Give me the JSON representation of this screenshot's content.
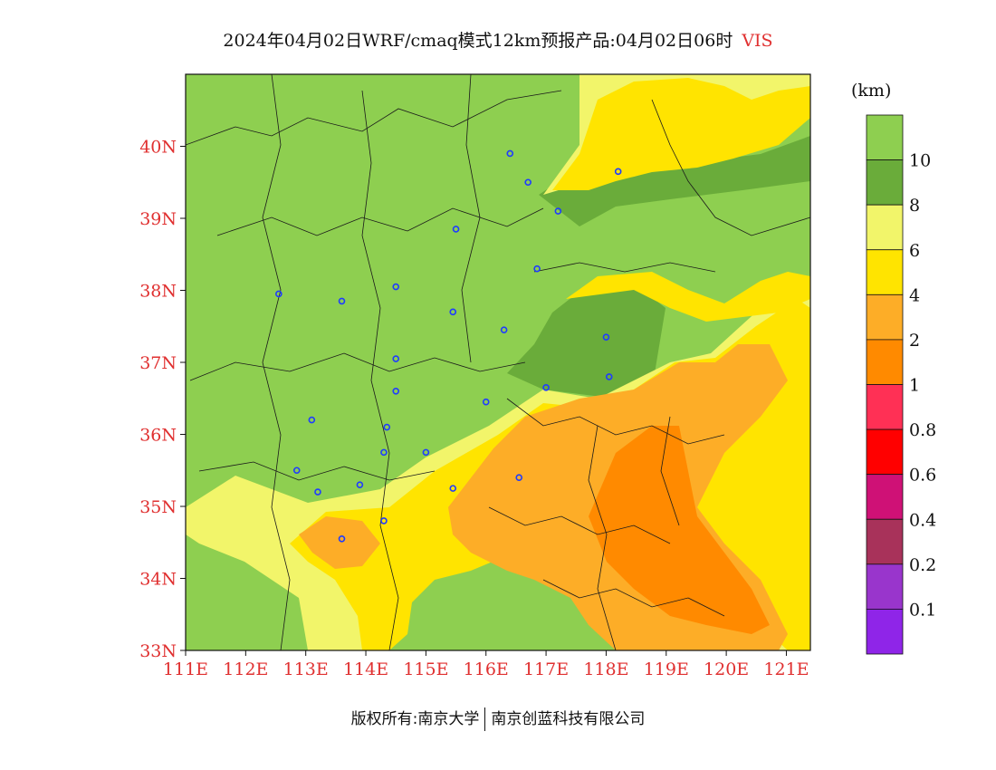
{
  "title": {
    "main": "2024年04月02日WRF/cmaq模式12km预报产品:04月02日06时",
    "variable": "VIS"
  },
  "legend": {
    "unit": "(km)",
    "levels": [
      {
        "label": "",
        "color": "#8ecf50"
      },
      {
        "label": "10",
        "color": "#6aac3a"
      },
      {
        "label": "8",
        "color": "#f2f56a"
      },
      {
        "label": "6",
        "color": "#ffe400"
      },
      {
        "label": "4",
        "color": "#fdad27"
      },
      {
        "label": "2",
        "color": "#ff8a00"
      },
      {
        "label": "1",
        "color": "#ff3055"
      },
      {
        "label": "0.8",
        "color": "#ff0000"
      },
      {
        "label": "0.6",
        "color": "#cf1176"
      },
      {
        "label": "0.4",
        "color": "#a8325a"
      },
      {
        "label": "0.2",
        "color": "#9935cc"
      },
      {
        "label": "0.1",
        "color": "#8f25e8"
      }
    ]
  },
  "map": {
    "lon_range": [
      111,
      121.4
    ],
    "lat_range": [
      33,
      41
    ],
    "x_ticks": [
      "111E",
      "112E",
      "113E",
      "114E",
      "115E",
      "116E",
      "117E",
      "118E",
      "119E",
      "120E",
      "121E"
    ],
    "y_ticks": [
      "33N",
      "34N",
      "35N",
      "36N",
      "37N",
      "38N",
      "39N",
      "40N"
    ],
    "tick_color": "#e03030",
    "stations": [
      [
        116.4,
        39.9
      ],
      [
        116.7,
        39.5
      ],
      [
        117.2,
        39.1
      ],
      [
        118.2,
        39.65
      ],
      [
        115.5,
        38.85
      ],
      [
        116.85,
        38.3
      ],
      [
        112.55,
        37.95
      ],
      [
        113.6,
        37.85
      ],
      [
        114.5,
        38.05
      ],
      [
        115.45,
        37.7
      ],
      [
        116.3,
        37.45
      ],
      [
        114.5,
        37.05
      ],
      [
        114.5,
        36.6
      ],
      [
        117.0,
        36.65
      ],
      [
        118.05,
        36.8
      ],
      [
        118.0,
        37.35
      ],
      [
        113.1,
        36.2
      ],
      [
        114.35,
        36.1
      ],
      [
        114.3,
        35.75
      ],
      [
        115.0,
        35.75
      ],
      [
        112.85,
        35.5
      ],
      [
        113.2,
        35.2
      ],
      [
        113.9,
        35.3
      ],
      [
        115.45,
        35.25
      ],
      [
        116.55,
        35.4
      ],
      [
        114.3,
        34.8
      ],
      [
        113.6,
        34.55
      ],
      [
        116.0,
        36.45
      ]
    ]
  },
  "footer": {
    "left": "版权所有:南京大学",
    "right": "南京创蓝科技有限公司"
  }
}
